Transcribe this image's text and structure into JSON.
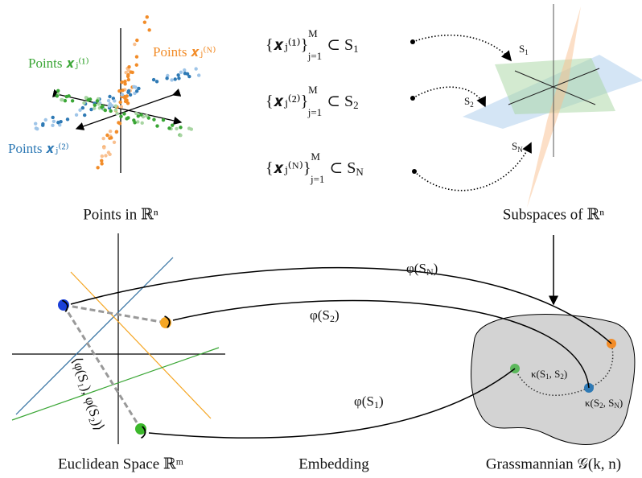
{
  "scatter_labels": {
    "group_1": "Points 𝒙ⱼ⁽¹⁾",
    "group_2": "Points 𝒙ⱼ⁽²⁾",
    "group_n": "Points 𝒙ⱼ⁽ᴺ⁾"
  },
  "sets": [
    {
      "set": "{𝒙ⱼ⁽¹⁾}",
      "upper": "M",
      "lower": "j=1",
      "subset": "⊂ S",
      "index": "1"
    },
    {
      "set": "{𝒙ⱼ⁽²⁾}",
      "upper": "M",
      "lower": "j=1",
      "subset": "⊂ S",
      "index": "2"
    },
    {
      "set": "{𝒙ⱼ⁽ᴺ⁾}",
      "upper": "M",
      "lower": "j=1",
      "subset": "⊂ S",
      "index": "N"
    }
  ],
  "plane_labels": [
    {
      "base": "S",
      "sub": "1"
    },
    {
      "base": "S",
      "sub": "2"
    },
    {
      "base": "S",
      "sub": "N"
    }
  ],
  "embedding_labels": [
    {
      "pre": "φ(S",
      "sub": "N",
      "post": ")"
    },
    {
      "pre": "φ(S",
      "sub": "2",
      "post": ")"
    },
    {
      "pre": "φ(S",
      "sub": "1",
      "post": ")"
    }
  ],
  "inner_product": "⟨φ(S₁), φ(S₂)⟩",
  "kappa_labels": [
    {
      "pre": "κ(S",
      "sub": "1",
      "mid": ", S",
      "sub2": "2",
      "post": ")"
    },
    {
      "pre": "κ(S",
      "sub": "2",
      "mid": ", S",
      "sub2": "N",
      "post": ")"
    }
  ],
  "captions": {
    "points": "Points in ℝⁿ",
    "subspaces": "Subspaces of ℝⁿ",
    "euclidean": "Euclidean Space ℝᵐ",
    "embedding": "Embedding",
    "grassmannian": "Grassmannian 𝒢(k, n)"
  }
}
